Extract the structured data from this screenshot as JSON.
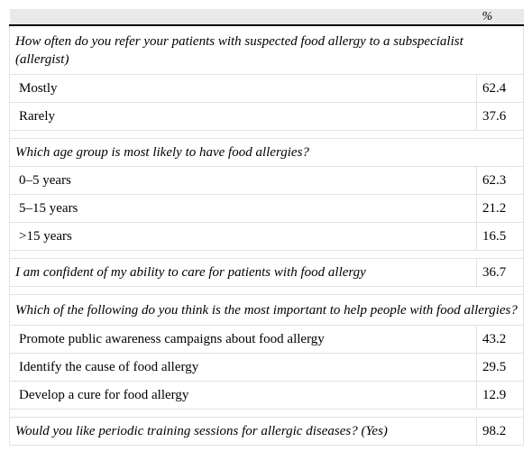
{
  "table": {
    "header": {
      "label": "",
      "value": "%"
    },
    "sections": [
      {
        "question": "How often do you refer your patients with suspected food allergy to a subspecialist (allergist)",
        "value": "",
        "options": [
          {
            "label": "Mostly",
            "value": "62.4"
          },
          {
            "label": "Rarely",
            "value": "37.6"
          }
        ]
      },
      {
        "question": "Which age group is most likely to have food allergies?",
        "value": "",
        "options": [
          {
            "label": "0–5 years",
            "value": "62.3"
          },
          {
            "label": "5–15 years",
            "value": "21.2"
          },
          {
            "label": ">15 years",
            "value": "16.5"
          }
        ]
      },
      {
        "question": "I am confident of my ability to care for patients with food allergy",
        "value": "36.7",
        "options": []
      },
      {
        "question": "Which of the following do you think is the most important to help people with food allergies?",
        "value": "",
        "options": [
          {
            "label": "Promote public awareness campaigns about food allergy",
            "value": "43.2"
          },
          {
            "label": "Identify the cause of food allergy",
            "value": "29.5"
          },
          {
            "label": "Develop a cure for food allergy",
            "value": "12.9"
          }
        ]
      },
      {
        "question": "Would you like periodic training sessions for allergic diseases? (Yes)",
        "value": "98.2",
        "options": []
      }
    ]
  }
}
